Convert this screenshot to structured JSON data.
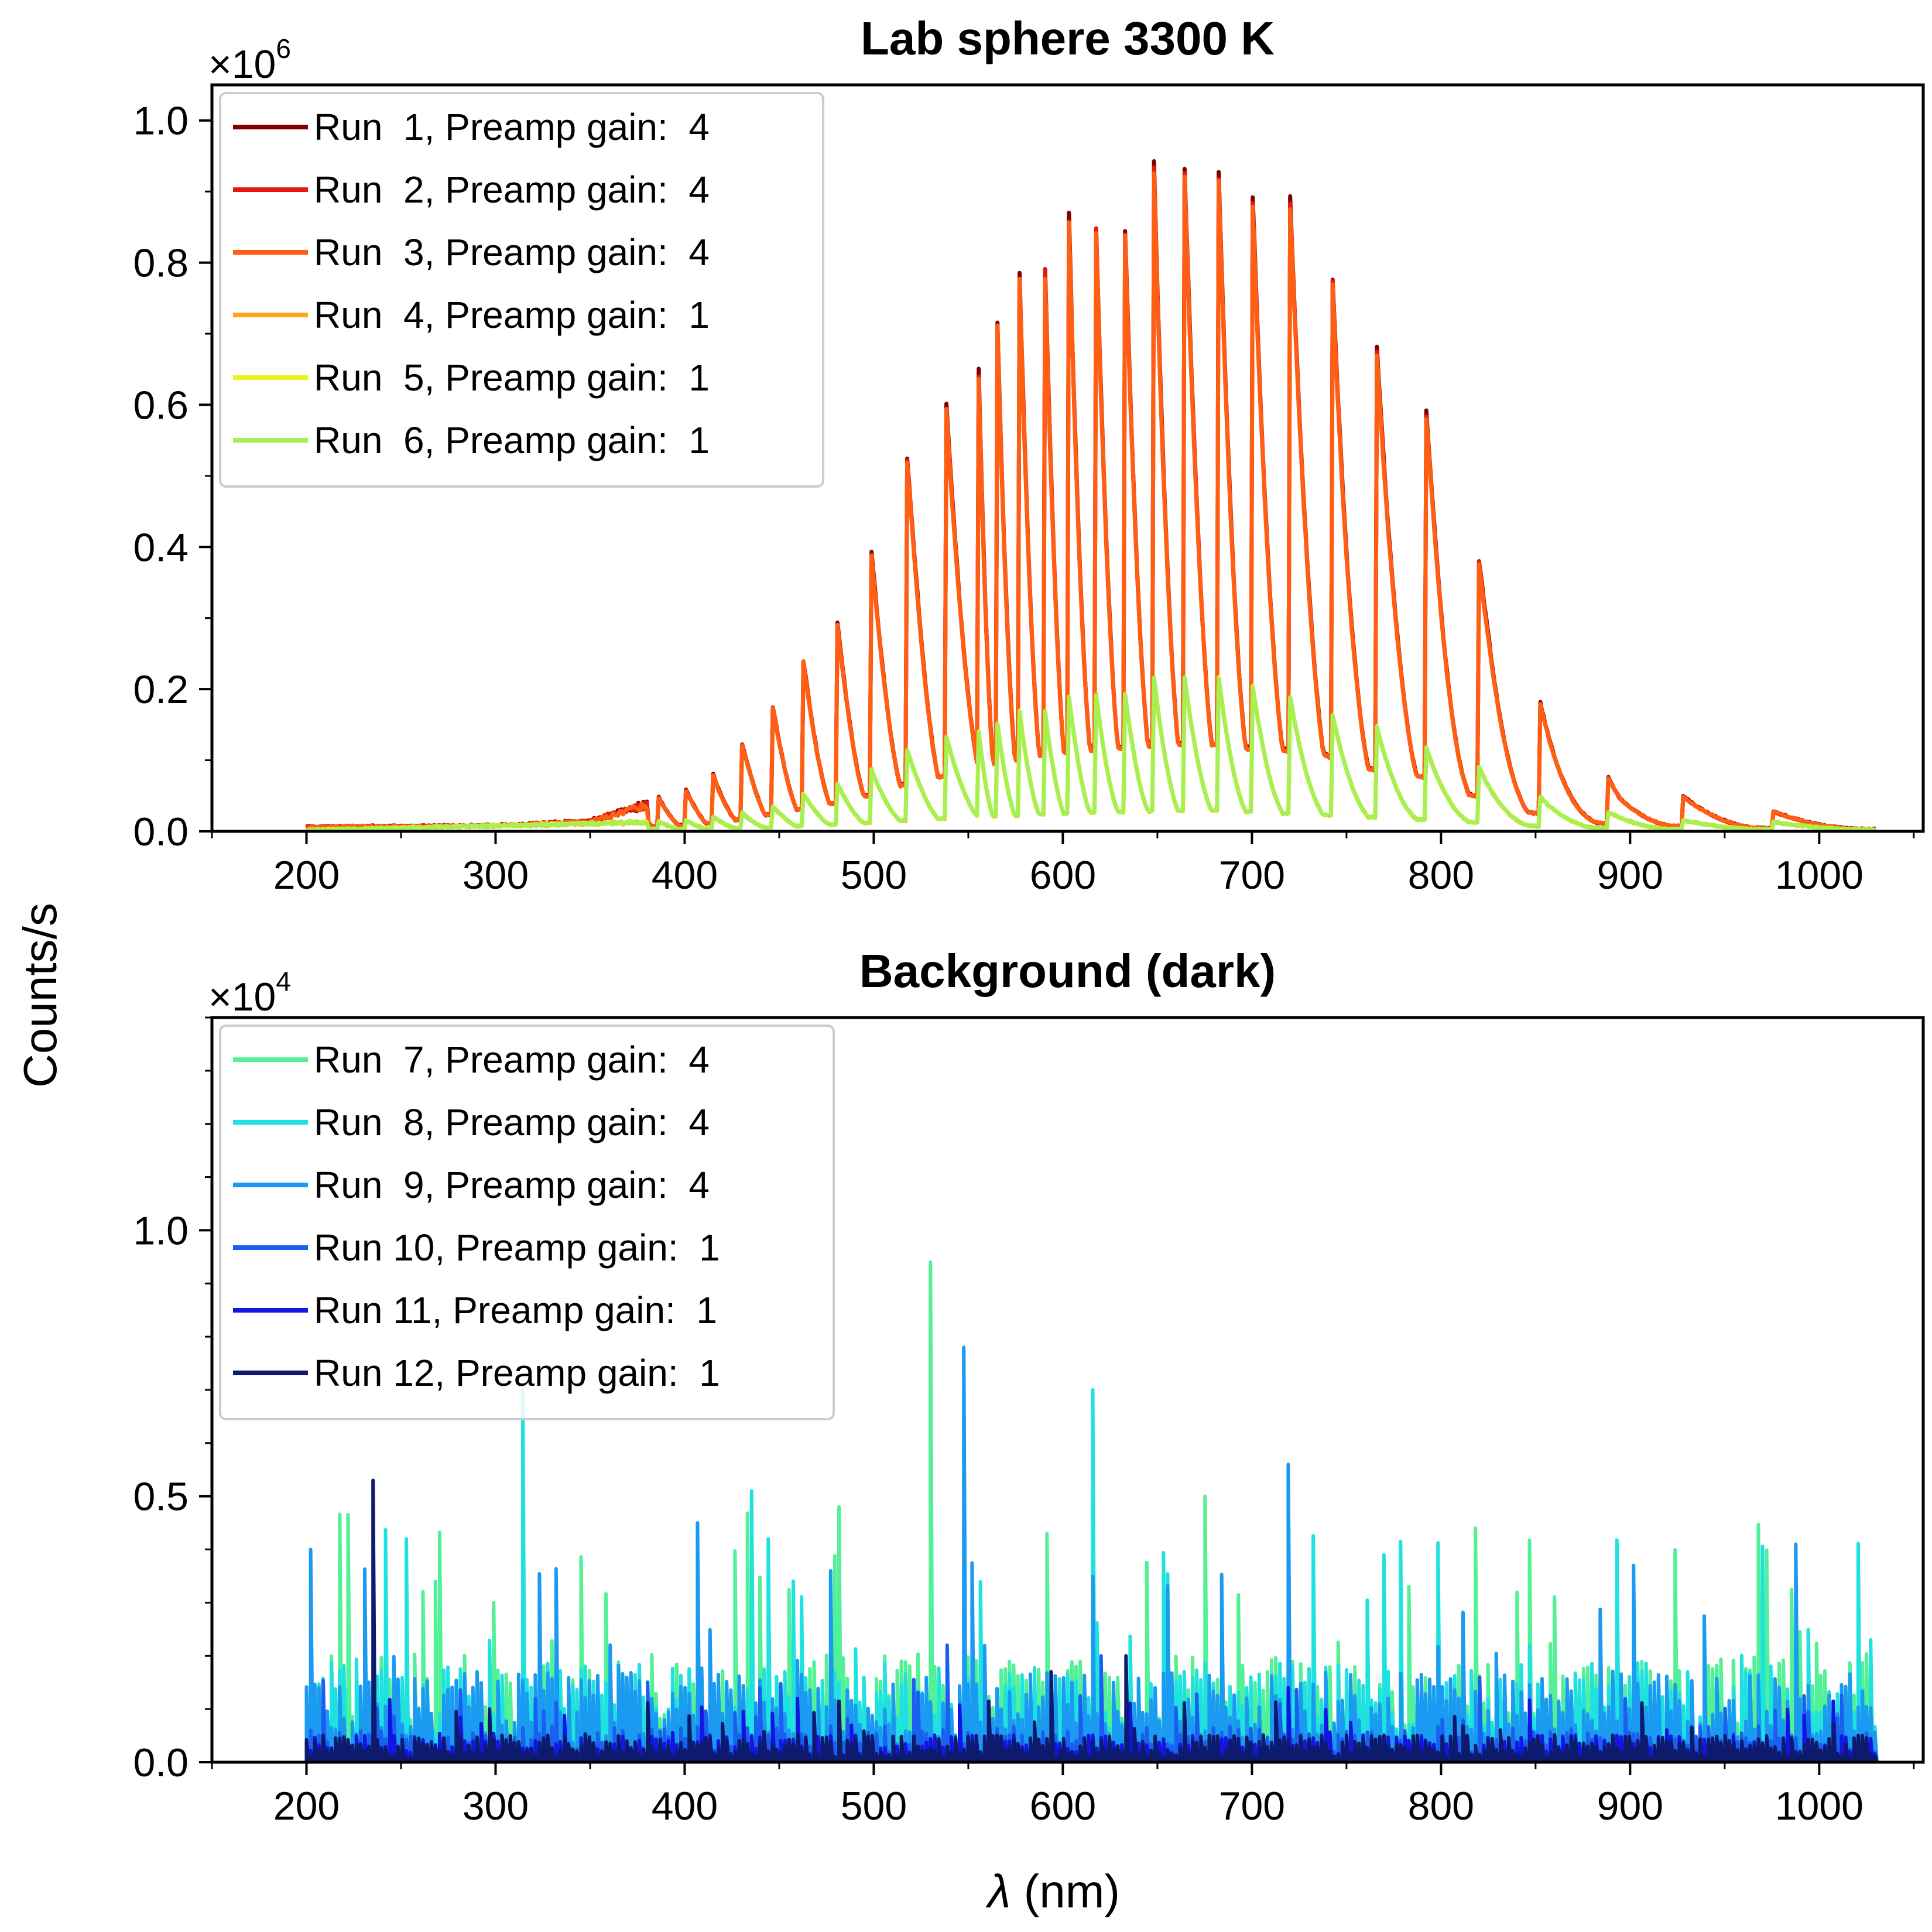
{
  "figure": {
    "ylabel": "Counts/s",
    "xlabel_symbol": "λ",
    "xlabel_unit": " (nm)"
  },
  "chart_data": [
    {
      "type": "line",
      "title": "Lab sphere 3300 K",
      "xlabel": "λ (nm)",
      "ylabel": "Counts/s",
      "y_multiplier_text": "×10",
      "y_multiplier_exp": "6",
      "xlim": [
        150,
        1055
      ],
      "ylim": [
        0.0,
        1.05
      ],
      "y_scale_factor": 1000000,
      "x_ticks": [
        200,
        300,
        400,
        500,
        600,
        700,
        800,
        900,
        1000
      ],
      "x_tick_labels": [
        "200",
        "300",
        "400",
        "500",
        "600",
        "700",
        "800",
        "900",
        "1000"
      ],
      "y_ticks": [
        0.0,
        0.2,
        0.4,
        0.6,
        0.8,
        1.0
      ],
      "y_tick_labels": [
        "0.0",
        "0.2",
        "0.4",
        "0.6",
        "0.8",
        "1.0"
      ],
      "grid": false,
      "legend_position": "top-left",
      "series": [
        {
          "name": "Run  1, Preamp gain:  4",
          "color": "#800000",
          "peak": 0.985
        },
        {
          "name": "Run  2, Preamp gain:  4",
          "color": "#e31a10",
          "peak": 0.975
        },
        {
          "name": "Run  3, Preamp gain:  4",
          "color": "#ff5e13",
          "peak": 0.97
        },
        {
          "name": "Run  4, Preamp gain:  1",
          "color": "#ffa518",
          "peak": 0.228
        },
        {
          "name": "Run  5, Preamp gain:  1",
          "color": "#eaf21a",
          "peak": 0.228
        },
        {
          "name": "Run  6, Preamp gain:  1",
          "color": "#a6f052",
          "peak": 0.228
        }
      ],
      "x_range": [
        200,
        1030
      ],
      "fringe_peaks_nm": [
        555,
        565,
        577,
        590,
        603,
        617,
        632,
        648,
        664,
        682,
        700,
        720,
        742,
        766,
        792,
        820,
        852,
        888,
        928,
        975,
        1030
      ],
      "envelope_points": [
        [
          200,
          0.006
        ],
        [
          300,
          0.008
        ],
        [
          350,
          0.015
        ],
        [
          400,
          0.06
        ],
        [
          420,
          0.09
        ],
        [
          450,
          0.2
        ],
        [
          470,
          0.27
        ],
        [
          490,
          0.35
        ],
        [
          500,
          0.41
        ],
        [
          510,
          0.47
        ],
        [
          520,
          0.54
        ],
        [
          535,
          0.6
        ],
        [
          550,
          0.67
        ],
        [
          565,
          0.75
        ],
        [
          580,
          0.8
        ],
        [
          595,
          0.87
        ],
        [
          610,
          0.89
        ],
        [
          625,
          0.91
        ],
        [
          640,
          0.94
        ],
        [
          655,
          0.95
        ],
        [
          675,
          0.975
        ],
        [
          695,
          0.92
        ],
        [
          715,
          0.9
        ],
        [
          735,
          0.88
        ],
        [
          750,
          0.74
        ],
        [
          765,
          0.68
        ],
        [
          780,
          0.63
        ],
        [
          795,
          0.58
        ],
        [
          810,
          0.42
        ],
        [
          825,
          0.36
        ],
        [
          845,
          0.21
        ],
        [
          870,
          0.12
        ],
        [
          895,
          0.06
        ],
        [
          925,
          0.05
        ],
        [
          965,
          0.03
        ],
        [
          1030,
          0.015
        ]
      ],
      "lowgain_envelope_points": [
        [
          200,
          0.001
        ],
        [
          400,
          0.015
        ],
        [
          440,
          0.03
        ],
        [
          470,
          0.06
        ],
        [
          500,
          0.09
        ],
        [
          530,
          0.13
        ],
        [
          560,
          0.155
        ],
        [
          590,
          0.18
        ],
        [
          610,
          0.2
        ],
        [
          650,
          0.22
        ],
        [
          680,
          0.225
        ],
        [
          700,
          0.21
        ],
        [
          730,
          0.18
        ],
        [
          755,
          0.16
        ],
        [
          780,
          0.13
        ],
        [
          800,
          0.11
        ],
        [
          820,
          0.09
        ],
        [
          850,
          0.05
        ],
        [
          880,
          0.03
        ],
        [
          920,
          0.015
        ],
        [
          1030,
          0.01
        ]
      ]
    },
    {
      "type": "line",
      "title": "Background (dark)",
      "xlabel": "λ (nm)",
      "ylabel": "Counts/s",
      "y_multiplier_text": "×10",
      "y_multiplier_exp": "4",
      "xlim": [
        150,
        1055
      ],
      "ylim": [
        0.0,
        1.4
      ],
      "y_scale_factor": 10000,
      "x_ticks": [
        200,
        300,
        400,
        500,
        600,
        700,
        800,
        900,
        1000
      ],
      "x_tick_labels": [
        "200",
        "300",
        "400",
        "500",
        "600",
        "700",
        "800",
        "900",
        "1000"
      ],
      "y_ticks": [
        0.0,
        0.5,
        1.0
      ],
      "y_tick_labels": [
        "0.0",
        "0.5",
        "1.0"
      ],
      "grid": false,
      "legend_position": "top-left",
      "series": [
        {
          "name": "Run  7, Preamp gain:  4",
          "color": "#52f097",
          "base": 0.12,
          "spikes": [
            [
              530,
              0.94
            ],
            [
              482,
              0.48
            ],
            [
              676,
              0.5
            ],
            [
              818,
              0.44
            ],
            [
              592,
              0.43
            ],
            [
              300,
              0.3
            ]
          ]
        },
        {
          "name": "Run  8, Preamp gain:  4",
          "color": "#1fe2e0",
          "base": 0.11,
          "spikes": [
            [
              315,
              0.7
            ],
            [
              615,
              0.7
            ],
            [
              436,
              0.51
            ],
            [
              252,
              0.42
            ],
            [
              1028,
              0.23
            ],
            [
              770,
              0.39
            ]
          ]
        },
        {
          "name": "Run  9, Preamp gain:  4",
          "color": "#1a9af0",
          "base": 0.1,
          "spikes": [
            [
              547,
              0.78
            ],
            [
              719,
              0.56
            ],
            [
              988,
              0.41
            ],
            [
              202,
              0.4
            ],
            [
              406,
              0.45
            ],
            [
              903,
              0.37
            ]
          ]
        },
        {
          "name": "Run 10, Preamp gain:  1",
          "color": "#1a60f0",
          "base": 0.04,
          "spikes": [
            [
              620,
              0.2
            ],
            [
              540,
              0.22
            ],
            [
              380,
              0.15
            ]
          ]
        },
        {
          "name": "Run 11, Preamp gain:  1",
          "color": "#1216e0",
          "base": 0.03,
          "spikes": [
            [
              720,
              0.14
            ],
            [
              460,
              0.12
            ]
          ]
        },
        {
          "name": "Run 12, Preamp gain:  1",
          "color": "#0e1a6e",
          "base": 0.03,
          "spikes": [
            [
              236,
              0.53
            ],
            [
              594,
              0.17
            ],
            [
              633,
              0.2
            ],
            [
              297,
              0.1
            ]
          ]
        }
      ],
      "x_range": [
        200,
        1030
      ]
    }
  ]
}
